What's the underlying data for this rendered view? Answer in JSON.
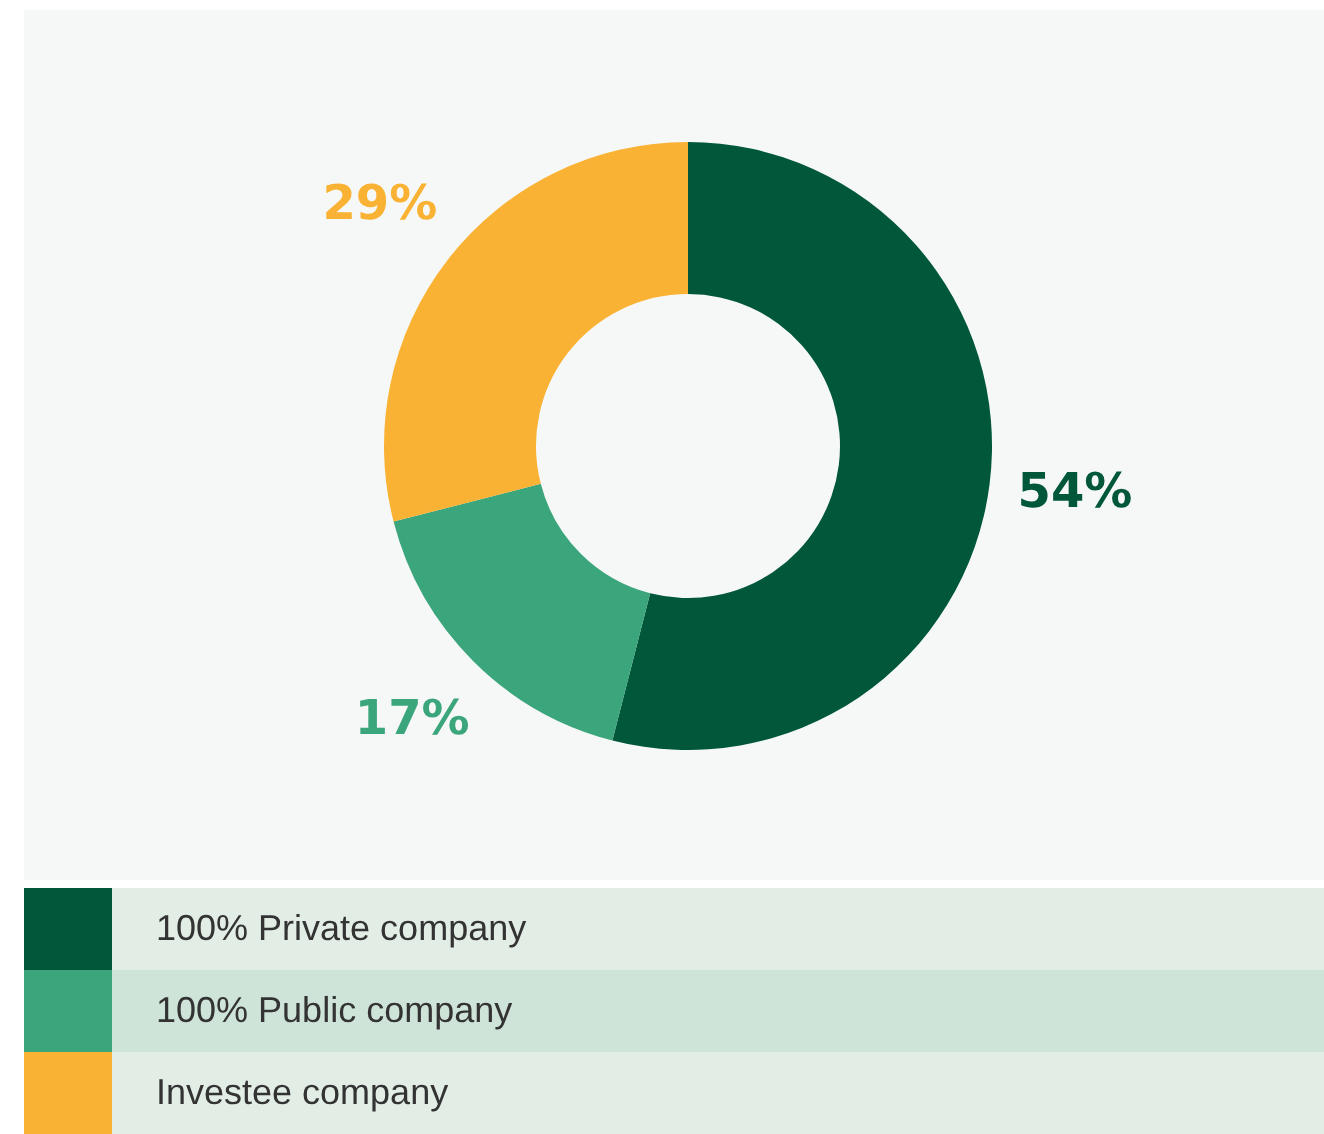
{
  "chart_data": {
    "type": "donut",
    "categories": [
      "100% Private company",
      "100% Public company",
      "Investee company"
    ],
    "values": [
      54,
      17,
      29
    ],
    "colors": [
      "#00573a",
      "#3ba57b",
      "#f9b233"
    ],
    "value_labels": [
      "54%",
      "17%",
      "29%"
    ],
    "legend": "bottom"
  }
}
